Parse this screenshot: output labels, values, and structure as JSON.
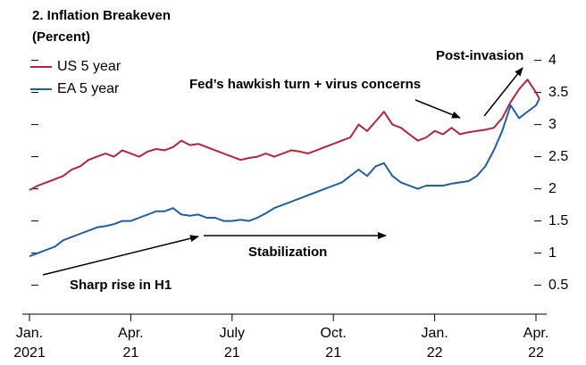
{
  "chart_data": {
    "type": "line",
    "title": "2. Inflation Breakeven",
    "subtitle": "(Percent)",
    "x": [
      0,
      0.25,
      0.5,
      0.75,
      1,
      1.25,
      1.5,
      1.75,
      2,
      2.25,
      2.5,
      2.75,
      3,
      3.25,
      3.5,
      3.75,
      4,
      4.25,
      4.5,
      4.75,
      5,
      5.25,
      5.5,
      5.75,
      6,
      6.25,
      6.5,
      6.75,
      7,
      7.25,
      7.5,
      7.75,
      8,
      8.25,
      8.5,
      8.75,
      9,
      9.25,
      9.5,
      9.75,
      10,
      10.25,
      10.5,
      10.75,
      11,
      11.25,
      11.5,
      11.75,
      12,
      12.25,
      12.5,
      12.75,
      13,
      13.25,
      13.5,
      13.75,
      14,
      14.25,
      14.5,
      14.75,
      15,
      15.1
    ],
    "series": [
      {
        "name": "US 5 year",
        "color": "#b5243a",
        "values": [
          1.98,
          2.05,
          2.1,
          2.15,
          2.2,
          2.3,
          2.35,
          2.45,
          2.5,
          2.55,
          2.5,
          2.6,
          2.55,
          2.5,
          2.58,
          2.62,
          2.6,
          2.65,
          2.75,
          2.68,
          2.7,
          2.65,
          2.6,
          2.55,
          2.5,
          2.45,
          2.48,
          2.5,
          2.55,
          2.5,
          2.55,
          2.6,
          2.58,
          2.55,
          2.6,
          2.65,
          2.7,
          2.75,
          2.8,
          3.0,
          2.9,
          3.05,
          3.2,
          3.0,
          2.95,
          2.85,
          2.75,
          2.8,
          2.9,
          2.85,
          2.95,
          2.85,
          2.88,
          2.9,
          2.92,
          2.95,
          3.1,
          3.35,
          3.55,
          3.7,
          3.5,
          3.4
        ]
      },
      {
        "name": "EA 5 year",
        "color": "#1f5fa8",
        "values": [
          0.95,
          1.0,
          1.05,
          1.1,
          1.2,
          1.25,
          1.3,
          1.35,
          1.4,
          1.42,
          1.45,
          1.5,
          1.5,
          1.55,
          1.6,
          1.65,
          1.65,
          1.7,
          1.6,
          1.58,
          1.6,
          1.55,
          1.55,
          1.5,
          1.5,
          1.52,
          1.5,
          1.55,
          1.62,
          1.7,
          1.75,
          1.8,
          1.85,
          1.9,
          1.95,
          2.0,
          2.05,
          2.1,
          2.2,
          2.3,
          2.2,
          2.35,
          2.4,
          2.2,
          2.1,
          2.05,
          2.0,
          2.05,
          2.05,
          2.05,
          2.08,
          2.1,
          2.12,
          2.2,
          2.35,
          2.6,
          2.9,
          3.3,
          3.1,
          3.2,
          3.3,
          3.4
        ]
      }
    ],
    "xlim": [
      0,
      15.4
    ],
    "xticks": [
      {
        "value": 0,
        "label": "Jan. 2021"
      },
      {
        "value": 3,
        "label": "Apr. 21"
      },
      {
        "value": 6,
        "label": "July 21"
      },
      {
        "value": 9,
        "label": "Oct. 21"
      },
      {
        "value": 12,
        "label": "Jan. 22"
      },
      {
        "value": 15,
        "label": "Apr. 22"
      }
    ],
    "ylim": [
      0.05,
      4.45
    ],
    "yticks": [
      0.5,
      1.0,
      1.5,
      2.0,
      2.5,
      3.0,
      3.5,
      4.0
    ],
    "grid": false,
    "legend": "upper left",
    "annotations": [
      "Post-invasion",
      "Fed’s hawkish turn + virus concerns",
      "Stabilization",
      "Sharp rise in H1"
    ]
  }
}
